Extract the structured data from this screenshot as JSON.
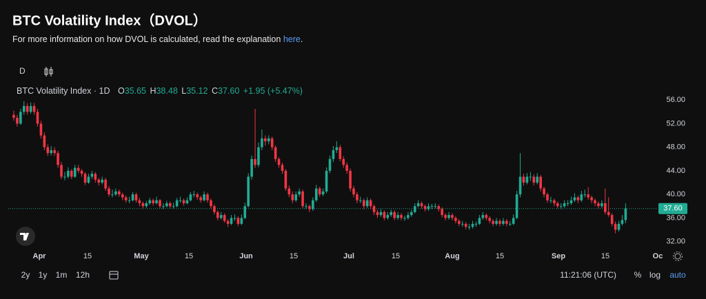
{
  "header": {
    "title": "BTC Volatility Index（DVOL）",
    "subtitle": "For more information on how DVOL is calculated, read the explanation",
    "link": "here",
    "link_end": "."
  },
  "toolbar": {
    "interval": "D"
  },
  "legend": {
    "name": "BTC Volatility Index · 1D",
    "o_label": "O",
    "o": "35.65",
    "h_label": "H",
    "h": "38.48",
    "l_label": "L",
    "l": "35.12",
    "c_label": "C",
    "c": "37.60",
    "change": "+1.95 (+5.47%)"
  },
  "footer": {
    "ranges": [
      "2y",
      "1y",
      "1m",
      "12h"
    ],
    "time": "11:21:06 (UTC)",
    "options": [
      "%",
      "log",
      "auto"
    ]
  },
  "chart_data": {
    "type": "candlestick",
    "up_color": "#22ab94",
    "down_color": "#f23645",
    "ylim": [
      30.2,
      57.2
    ],
    "yticks": [
      {
        "value": 56,
        "label": "56.00"
      },
      {
        "value": 52,
        "label": "52.00"
      },
      {
        "value": 48,
        "label": "48.00"
      },
      {
        "value": 44,
        "label": "44.00"
      },
      {
        "value": 40,
        "label": "40.00"
      },
      {
        "value": 36,
        "label": "36.00"
      },
      {
        "value": 32,
        "label": "32.00"
      }
    ],
    "xticks": [
      "Apr",
      "15",
      "May",
      "15",
      "Jun",
      "15",
      "Jul",
      "15",
      "Aug",
      "15",
      "Sep",
      "15",
      "Oc"
    ],
    "last_price": {
      "value": 37.6,
      "label": "37.60"
    },
    "candles": [
      [
        53.5,
        54.2,
        52.5,
        53
      ],
      [
        53,
        53.5,
        51.5,
        52
      ],
      [
        52,
        54.5,
        51.8,
        54
      ],
      [
        54,
        55.8,
        53.5,
        55
      ],
      [
        55,
        55.5,
        53.5,
        54
      ],
      [
        54,
        55.6,
        53.7,
        55
      ],
      [
        55,
        55.5,
        53.5,
        54
      ],
      [
        54,
        54.5,
        51.5,
        52
      ],
      [
        52,
        52.5,
        49.5,
        50
      ],
      [
        50,
        50.5,
        47.5,
        48
      ],
      [
        48,
        48.5,
        46.5,
        47
      ],
      [
        47,
        48.2,
        46.6,
        47.5
      ],
      [
        47.5,
        48,
        46.5,
        47
      ],
      [
        47,
        47.4,
        44.5,
        45
      ],
      [
        45,
        45.5,
        42.6,
        43
      ],
      [
        43,
        43.8,
        42.4,
        43
      ],
      [
        43,
        44.6,
        42.7,
        44
      ],
      [
        44,
        44.3,
        42.6,
        43
      ],
      [
        43,
        45,
        42.8,
        44.5
      ],
      [
        44.5,
        45,
        43.6,
        44
      ],
      [
        44,
        44.3,
        43,
        43.5
      ],
      [
        43.5,
        43.8,
        41.6,
        42
      ],
      [
        42,
        43.5,
        41.8,
        43
      ],
      [
        43,
        44,
        42.6,
        43.5
      ],
      [
        43.5,
        43.8,
        42,
        42.5
      ],
      [
        42.5,
        42.8,
        41.5,
        42
      ],
      [
        42,
        43,
        41.7,
        42.5
      ],
      [
        42.5,
        42.8,
        40.6,
        41
      ],
      [
        41,
        41.4,
        39.6,
        40
      ],
      [
        40,
        40.8,
        39.5,
        40
      ],
      [
        40,
        41,
        39.7,
        40.5
      ],
      [
        40.5,
        40.8,
        39.6,
        40
      ],
      [
        40,
        40.3,
        39,
        39.5
      ],
      [
        39.5,
        39.8,
        38.6,
        39
      ],
      [
        39,
        39.6,
        38.5,
        39
      ],
      [
        39,
        40.4,
        38.8,
        40
      ],
      [
        40,
        40.3,
        38.6,
        39
      ],
      [
        39,
        39.4,
        38,
        38.5
      ],
      [
        38.5,
        38.8,
        37.6,
        38
      ],
      [
        38,
        38.9,
        37.7,
        38.5
      ],
      [
        38.5,
        39.4,
        38.2,
        39
      ],
      [
        39,
        39.3,
        38.1,
        38.5
      ],
      [
        38.5,
        39.6,
        38.3,
        39
      ],
      [
        39,
        39.2,
        37.6,
        38
      ],
      [
        38,
        38.5,
        37.5,
        38
      ],
      [
        38,
        38.9,
        37.8,
        38.5
      ],
      [
        38.5,
        38.8,
        37.6,
        38
      ],
      [
        38,
        38.6,
        37.6,
        38
      ],
      [
        38,
        39.4,
        37.8,
        39
      ],
      [
        39,
        39.6,
        38.6,
        39
      ],
      [
        39,
        39.3,
        38.1,
        38.5
      ],
      [
        38.5,
        39.5,
        38.3,
        39
      ],
      [
        39,
        40.4,
        38.8,
        40
      ],
      [
        40,
        40.6,
        39.5,
        40
      ],
      [
        40,
        40.3,
        39.1,
        39.5
      ],
      [
        39.5,
        39.8,
        38.6,
        39
      ],
      [
        39,
        40.5,
        38.8,
        40
      ],
      [
        40,
        40.3,
        38.6,
        39
      ],
      [
        39,
        39.3,
        37.6,
        38
      ],
      [
        38,
        38.3,
        36.6,
        37
      ],
      [
        37,
        37.3,
        35.6,
        36
      ],
      [
        36,
        37,
        35.7,
        36.5
      ],
      [
        36.5,
        36.8,
        35.2,
        35.5
      ],
      [
        35.5,
        35.8,
        34.5,
        35
      ],
      [
        35,
        36.5,
        34.8,
        36
      ],
      [
        36,
        36.6,
        35.5,
        36
      ],
      [
        36,
        36.3,
        34.6,
        35
      ],
      [
        35,
        36.6,
        34.8,
        36
      ],
      [
        36,
        38.6,
        35.8,
        38
      ],
      [
        38,
        43.6,
        37.8,
        43
      ],
      [
        43,
        46.6,
        42.5,
        46
      ],
      [
        46,
        54.5,
        44.5,
        45
      ],
      [
        45,
        48.8,
        44.6,
        48
      ],
      [
        48,
        51,
        47.5,
        49.5
      ],
      [
        49.5,
        50,
        48.3,
        49
      ],
      [
        49,
        50,
        48.5,
        49.5
      ],
      [
        49.5,
        49.8,
        47.5,
        48
      ],
      [
        48,
        48.3,
        45.5,
        46
      ],
      [
        46,
        46.3,
        44.5,
        45
      ],
      [
        45,
        45.4,
        43.5,
        44
      ],
      [
        44,
        44.3,
        40.6,
        41
      ],
      [
        41,
        41.5,
        39.5,
        40
      ],
      [
        40,
        40.5,
        38.5,
        39
      ],
      [
        39,
        40.5,
        38.7,
        40
      ],
      [
        40,
        41,
        39.6,
        40.5
      ],
      [
        40.5,
        40.8,
        37.6,
        38
      ],
      [
        38,
        38.5,
        37.5,
        38
      ],
      [
        38,
        38.3,
        37,
        37.5
      ],
      [
        37.5,
        39.5,
        37.2,
        39
      ],
      [
        39,
        41.6,
        38.7,
        41
      ],
      [
        41,
        41.3,
        39.6,
        40
      ],
      [
        40,
        41,
        39.7,
        40.5
      ],
      [
        40.5,
        44.6,
        40.2,
        44
      ],
      [
        44,
        46.6,
        43.6,
        46
      ],
      [
        46,
        48.2,
        45.5,
        47.5
      ],
      [
        47.5,
        49,
        47,
        48
      ],
      [
        48,
        48.4,
        45.6,
        46
      ],
      [
        46,
        46.5,
        44.5,
        45
      ],
      [
        45,
        45.4,
        43.5,
        44
      ],
      [
        44,
        44.4,
        40.5,
        41
      ],
      [
        41,
        41.5,
        39.5,
        40
      ],
      [
        40,
        40.4,
        38.5,
        39
      ],
      [
        39,
        39.6,
        38.5,
        39
      ],
      [
        39,
        39.3,
        37.5,
        38
      ],
      [
        38,
        39.5,
        37.7,
        39
      ],
      [
        39,
        39.3,
        37.5,
        38
      ],
      [
        38,
        38.3,
        36.5,
        37
      ],
      [
        37,
        37.4,
        36,
        36.5
      ],
      [
        36.5,
        37.5,
        36.2,
        37
      ],
      [
        37,
        37.3,
        35.6,
        36
      ],
      [
        36,
        37,
        35.7,
        36.5
      ],
      [
        36.5,
        37.4,
        36.2,
        37
      ],
      [
        37,
        37.3,
        35.6,
        36
      ],
      [
        36,
        37,
        35.7,
        36.5
      ],
      [
        36.5,
        36.8,
        35.6,
        36
      ],
      [
        36,
        36.4,
        35.5,
        36
      ],
      [
        36,
        37,
        35.7,
        36.5
      ],
      [
        36.5,
        37.4,
        36.2,
        37
      ],
      [
        37,
        38.5,
        36.8,
        38
      ],
      [
        38,
        39,
        37.8,
        38.5
      ],
      [
        38.5,
        38.8,
        37.6,
        38
      ],
      [
        38,
        38.3,
        37.1,
        37.5
      ],
      [
        37.5,
        38.5,
        37.2,
        38
      ],
      [
        38,
        38.4,
        37.5,
        38
      ],
      [
        38,
        38.5,
        37.6,
        38
      ],
      [
        38,
        38.3,
        37.1,
        37.5
      ],
      [
        37.5,
        37.8,
        36.1,
        36.5
      ],
      [
        36.5,
        36.8,
        35.6,
        36
      ],
      [
        36,
        37,
        35.7,
        36.5
      ],
      [
        36.5,
        36.8,
        35.6,
        36
      ],
      [
        36,
        36.3,
        35.1,
        35.5
      ],
      [
        35.5,
        35.8,
        34.6,
        35
      ],
      [
        35,
        35.5,
        34.5,
        35
      ],
      [
        35,
        35.3,
        34.1,
        34.5
      ],
      [
        34.5,
        35,
        34,
        34.5
      ],
      [
        34.5,
        35.5,
        34.2,
        35
      ],
      [
        35,
        35.4,
        34.5,
        35
      ],
      [
        35,
        36.5,
        34.8,
        36
      ],
      [
        36,
        37,
        35.7,
        36.5
      ],
      [
        36.5,
        36.8,
        35.6,
        36
      ],
      [
        36,
        36.3,
        35.1,
        35.5
      ],
      [
        35.5,
        35.8,
        34.6,
        35
      ],
      [
        35,
        36,
        34.7,
        35.5
      ],
      [
        35.5,
        35.8,
        34.6,
        35
      ],
      [
        35,
        36,
        34.7,
        35.5
      ],
      [
        35.5,
        35.8,
        34.6,
        35
      ],
      [
        35,
        35.5,
        34.6,
        35
      ],
      [
        35,
        36.6,
        34.8,
        36
      ],
      [
        36,
        40.6,
        35.8,
        40
      ],
      [
        40,
        47,
        39.5,
        43
      ],
      [
        43,
        43.5,
        41.5,
        42
      ],
      [
        42,
        43.6,
        41.7,
        43
      ],
      [
        43,
        43.8,
        42.3,
        43
      ],
      [
        43,
        43.4,
        41.5,
        42
      ],
      [
        42,
        43.6,
        41.7,
        43
      ],
      [
        43,
        43.3,
        40.5,
        41
      ],
      [
        41,
        41.3,
        39.5,
        40
      ],
      [
        40,
        40.3,
        38.6,
        39
      ],
      [
        39,
        39.6,
        38.5,
        39
      ],
      [
        39,
        39.3,
        38,
        38.5
      ],
      [
        38.5,
        38.8,
        37.6,
        38
      ],
      [
        38,
        38.5,
        37.5,
        38
      ],
      [
        38,
        39,
        37.7,
        38.5
      ],
      [
        38.5,
        39,
        38,
        38.5
      ],
      [
        38.5,
        39.6,
        38.2,
        39
      ],
      [
        39,
        40.2,
        38.7,
        39.5
      ],
      [
        39.5,
        39.8,
        38.5,
        39
      ],
      [
        39,
        40.6,
        38.7,
        40
      ],
      [
        40,
        40.8,
        39.5,
        40
      ],
      [
        40,
        41.2,
        39.1,
        39.5
      ],
      [
        39.5,
        39.8,
        38.5,
        39
      ],
      [
        39,
        39.3,
        38,
        38.5
      ],
      [
        38.5,
        38.8,
        37.6,
        38
      ],
      [
        38,
        39,
        37.7,
        38.5
      ],
      [
        38.5,
        41,
        36.6,
        37
      ],
      [
        37,
        39.5,
        36.2,
        36.5
      ],
      [
        36.5,
        36.8,
        34.6,
        35
      ],
      [
        35,
        35.4,
        33.4,
        34
      ],
      [
        34,
        35.5,
        33.7,
        35
      ],
      [
        35,
        36.5,
        34.7,
        35.65
      ],
      [
        35.65,
        38.48,
        35.12,
        37.6
      ]
    ]
  }
}
